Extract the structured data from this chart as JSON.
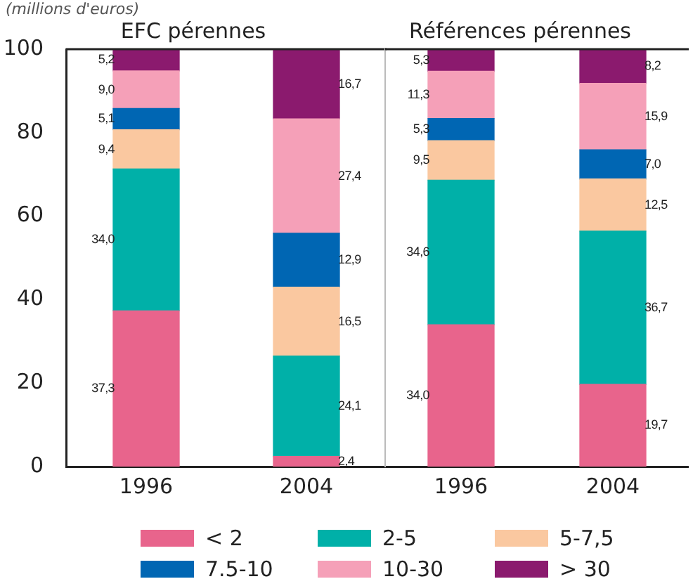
{
  "chart_data": [
    {
      "type": "bar",
      "title": "EFC pérennes",
      "annotations": [
        "(millions d'euros)"
      ],
      "categories": [
        "1996",
        "2004"
      ],
      "stacked": true,
      "ylim": [
        0,
        100
      ],
      "yticks": [
        0,
        20,
        40,
        60,
        80,
        100
      ],
      "grid": false,
      "legend": "bottom",
      "data_labels": true,
      "series": [
        {
          "name": "< 2",
          "color": "#e8648c",
          "values": [
            37.3,
            2.4
          ],
          "value_labels": [
            "37,3",
            "2,4"
          ]
        },
        {
          "name": "2-5",
          "color": "#00b0a8",
          "values": [
            34.0,
            24.1
          ],
          "value_labels": [
            "34,0",
            "24,1"
          ]
        },
        {
          "name": "5-7,5",
          "color": "#fac8a0",
          "values": [
            9.4,
            16.5
          ],
          "value_labels": [
            "9,4",
            "16,5"
          ]
        },
        {
          "name": "7.5-10",
          "color": "#0066b3",
          "values": [
            5.1,
            12.9
          ],
          "value_labels": [
            "5,1",
            "12,9"
          ]
        },
        {
          "name": "10-30",
          "color": "#f5a0b8",
          "values": [
            9.0,
            27.4
          ],
          "value_labels": [
            "9,0",
            "27,4"
          ]
        },
        {
          "name": "> 30",
          "color": "#8b1a6e",
          "values": [
            5.2,
            16.7
          ],
          "value_labels": [
            "5,2",
            "16,7"
          ]
        }
      ]
    },
    {
      "type": "bar",
      "title": "Références pérennes",
      "categories": [
        "1996",
        "2004"
      ],
      "stacked": true,
      "ylim": [
        0,
        100
      ],
      "yticks": [
        0,
        20,
        40,
        60,
        80,
        100
      ],
      "grid": false,
      "tick_labels": "x",
      "data_labels": true,
      "series": [
        {
          "color": "#e8648c",
          "values": [
            34.0,
            19.7
          ],
          "value_labels": [
            "34,0",
            "19,7"
          ]
        },
        {
          "color": "#00b0a8",
          "values": [
            34.6,
            36.7
          ],
          "value_labels": [
            "34,6",
            "36,7"
          ]
        },
        {
          "color": "#fac8a0",
          "values": [
            9.5,
            12.5
          ],
          "value_labels": [
            "9,5",
            "12,5"
          ]
        },
        {
          "color": "#0066b3",
          "values": [
            5.3,
            7.0
          ],
          "value_labels": [
            "5,3",
            "7,0"
          ]
        },
        {
          "color": "#f5a0b8",
          "values": [
            11.3,
            15.9
          ],
          "value_labels": [
            "11,3",
            "15,9"
          ]
        },
        {
          "color": "#8b1a6e",
          "values": [
            5.3,
            8.2
          ],
          "value_labels": [
            "5,3",
            "8,2"
          ]
        }
      ]
    }
  ]
}
